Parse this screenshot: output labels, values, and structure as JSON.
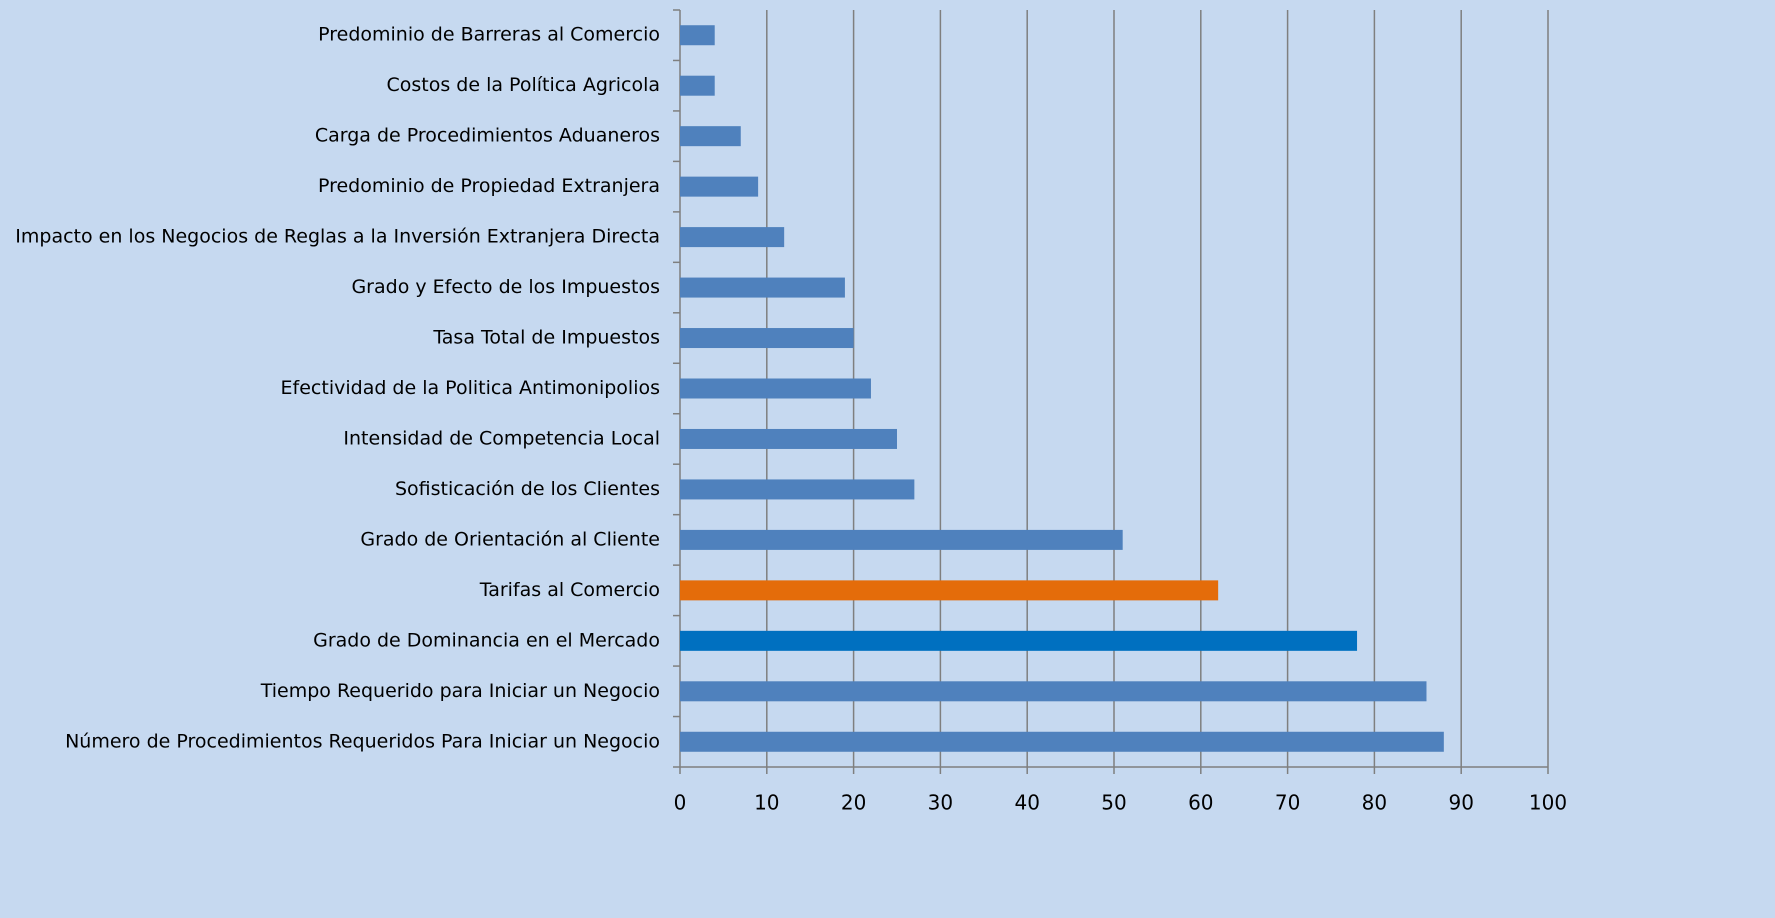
{
  "chart_data": {
    "type": "barh",
    "categories": [
      "Predominio de Barreras al Comercio",
      "Costos de la Política Agricola",
      "Carga de Procedimientos Aduaneros",
      "Predominio de Propiedad Extranjera",
      "Impacto en los Negocios de Reglas a la Inversión Extranjera Directa",
      "Grado y Efecto de los Impuestos",
      "Tasa Total de Impuestos",
      "Efectividad de la Politica Antimonipolios",
      "Intensidad de Competencia Local",
      "Sofisticación de los Clientes",
      "Grado de Orientación al Cliente",
      "Tarifas al Comercio",
      "Grado de Dominancia en el Mercado",
      "Tiempo Requerido para Iniciar un Negocio",
      "Número de Procedimientos Requeridos Para Iniciar un Negocio"
    ],
    "values": [
      4,
      4,
      7,
      9,
      12,
      19,
      20,
      22,
      25,
      27,
      51,
      62,
      78,
      86,
      88
    ],
    "colors": [
      "#4f81bd",
      "#4f81bd",
      "#4f81bd",
      "#4f81bd",
      "#4f81bd",
      "#4f81bd",
      "#4f81bd",
      "#4f81bd",
      "#4f81bd",
      "#4f81bd",
      "#4f81bd",
      "#e46c0a",
      "#0070c0",
      "#4f81bd",
      "#4f81bd"
    ],
    "xlim": [
      0,
      100
    ],
    "xticks": [
      0,
      10,
      20,
      30,
      40,
      50,
      60,
      70,
      80,
      90,
      100
    ],
    "grid": true
  }
}
